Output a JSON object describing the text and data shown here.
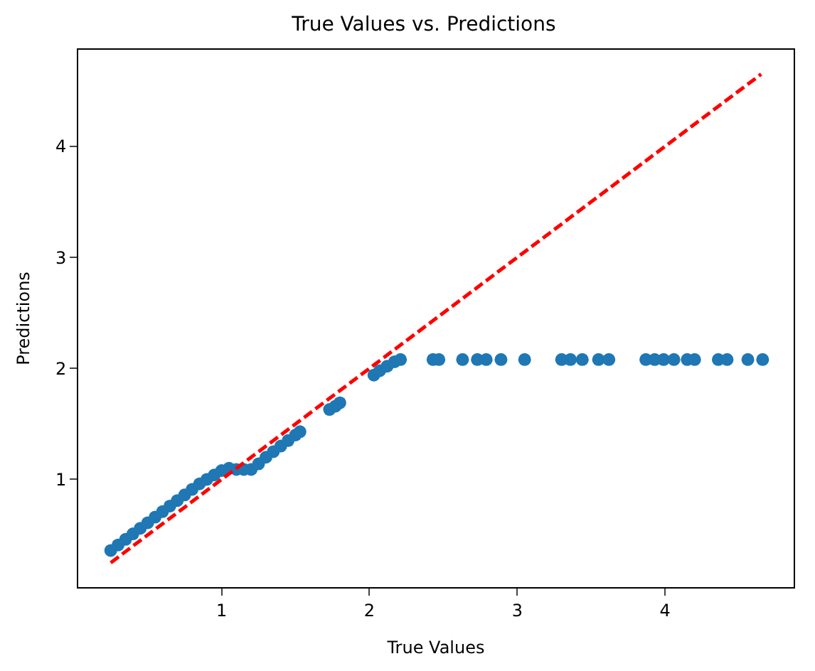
{
  "chart_data": {
    "type": "scatter",
    "title": "True Values vs. Predictions",
    "xlabel": "True Values",
    "ylabel": "Predictions",
    "xlim": [
      0.03,
      4.87
    ],
    "ylim": [
      0.03,
      4.87
    ],
    "xticks": [
      1,
      2,
      3,
      4
    ],
    "yticks": [
      1,
      2,
      3,
      4
    ],
    "series": [
      {
        "color": "#1f77b4",
        "marker": "circle",
        "x": [
          0.25,
          0.3,
          0.35,
          0.4,
          0.45,
          0.5,
          0.55,
          0.6,
          0.65,
          0.7,
          0.75,
          0.8,
          0.85,
          0.9,
          0.95,
          1.0,
          1.05,
          1.1,
          1.15,
          1.2,
          1.25,
          1.3,
          1.35,
          1.4,
          1.45,
          1.5,
          1.53,
          1.73,
          1.77,
          1.8,
          2.03,
          2.07,
          2.12,
          2.17,
          2.21,
          2.43,
          2.47,
          2.63,
          2.73,
          2.79,
          2.89,
          3.05,
          3.3,
          3.36,
          3.44,
          3.55,
          3.62,
          3.87,
          3.93,
          3.99,
          4.06,
          4.15,
          4.2,
          4.36,
          4.42,
          4.56,
          4.66
        ],
        "values": [
          0.36,
          0.41,
          0.46,
          0.51,
          0.56,
          0.61,
          0.66,
          0.71,
          0.76,
          0.81,
          0.86,
          0.91,
          0.96,
          1.0,
          1.04,
          1.08,
          1.1,
          1.09,
          1.09,
          1.09,
          1.14,
          1.2,
          1.25,
          1.3,
          1.35,
          1.4,
          1.43,
          1.63,
          1.66,
          1.69,
          1.94,
          1.98,
          2.02,
          2.06,
          2.08,
          2.08,
          2.08,
          2.08,
          2.08,
          2.08,
          2.08,
          2.08,
          2.08,
          2.08,
          2.08,
          2.08,
          2.08,
          2.08,
          2.08,
          2.08,
          2.08,
          2.08,
          2.08,
          2.08,
          2.08,
          2.08,
          2.08
        ]
      },
      {
        "type": "line",
        "color": "#ff0000",
        "line_style": "dashed",
        "marker": "none",
        "x": [
          0.25,
          4.65
        ],
        "values": [
          0.25,
          4.65
        ]
      }
    ]
  }
}
